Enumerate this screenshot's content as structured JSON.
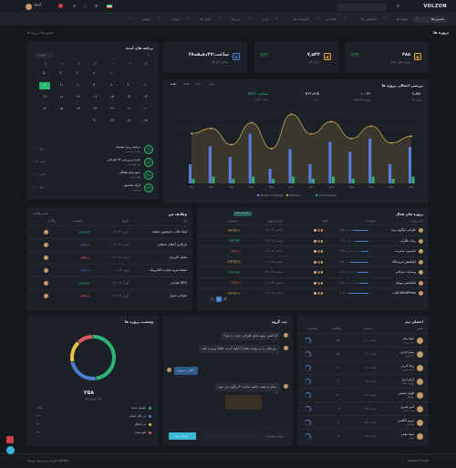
{
  "topbar": {
    "logo": "VOLZON",
    "user": {
      "name": "آرمان"
    }
  },
  "nav": {
    "items": [
      {
        "label": "داشبوردها",
        "active": true
      },
      {
        "label": "صفحه ها"
      },
      {
        "label": "اپلیکیشن ها"
      },
      {
        "label": "طراحی"
      },
      {
        "label": "کامپوننت ها"
      },
      {
        "label": "ابزار"
      },
      {
        "label": "فرم ها"
      },
      {
        "label": "جدول ها"
      },
      {
        "label": "نمودار"
      },
      {
        "label": "بیشتر"
      }
    ]
  },
  "page": {
    "title": "پروژه ها",
    "breadcrumb": "داشبوردها / پروژه ها"
  },
  "stats": [
    {
      "value": "۴۸۵",
      "label": "پروژه های فعال",
      "badge": "+۲.۴%",
      "icon": "briefcase-icon",
      "color": "#e8a33d"
    },
    {
      "value": "۷,۵۴۳",
      "label": "درآمد کل",
      "badge": "+۱۸%",
      "icon": "coin-icon",
      "color": "#e8a33d"
    },
    {
      "value": "۲۸ساعت:۴۷دقیقه",
      "label": "ساعت کار کل",
      "badge": "",
      "icon": "clock-icon",
      "color": "#4a7fd6"
    }
  ],
  "calendar": {
    "title": "برنامه های آینده",
    "month": "فوریه",
    "weekdays": [
      "ش",
      "ی",
      "د",
      "س",
      "چ",
      "پ",
      "ج"
    ],
    "days": [
      "۱",
      "۲",
      "۳",
      "۴",
      "۵",
      "۶",
      "۷",
      "۸",
      "۹",
      "۱۰",
      "۱۱",
      "۱۲",
      "۱۳",
      "۱۴",
      "۱۵",
      "۱۶",
      "۱۷",
      "۱۸",
      "۱۹",
      "۲۰",
      "۲۱",
      "۲۲",
      "۲۳",
      "۲۴",
      "۲۵",
      "۲۶",
      "۲۷",
      "۲۸",
      "۲۹",
      "۳۰"
    ],
    "today": "۱۲",
    "events": [
      {
        "day": "۰۹",
        "title": "برنامه ریزی توسعه",
        "sub": "جلسه تیم فنی",
        "time": "۱۰:۰۰ صبح"
      },
      {
        "day": "۱۴",
        "title": "طراحی UI جدید و بررسی",
        "sub": "تیم طراحی",
        "time": "۰۲:۳۰ عصر"
      },
      {
        "day": "۲۱",
        "title": "جمع بندی هفتگی",
        "sub": "همه اعضا",
        "time": "۰۴:۰۰ عصر"
      },
      {
        "day": "۲۷",
        "title": "ارائه محصول",
        "sub": "مدیریت",
        "time": "۱۱:۰۰ صبح"
      }
    ]
  },
  "overview": {
    "title": "بررسی اجمالی پروژه ها",
    "tabs": [
      "همه",
      "هفته",
      "ماه",
      "سال"
    ],
    "stats": [
      {
        "value": "۹,۸۵۱",
        "label": "پروژه ها"
      },
      {
        "value": "۱,۰۲۶",
        "label": "پروژه های فعال"
      },
      {
        "value": "$۲۲,۸۹k",
        "label": "درآمد"
      },
      {
        "value": "۵۴ساعت:۴۶",
        "label": "ساعت کاری"
      }
    ]
  },
  "chart_data": {
    "type": "bar",
    "categories": [
      "Jan",
      "Feb",
      "Mar",
      "Apr",
      "May",
      "Jun",
      "Jul",
      "Aug",
      "Sep",
      "Oct",
      "Nov",
      "Dec"
    ],
    "series": [
      {
        "name": "Number of Projects",
        "color": "#5b7fe0",
        "values": [
          34,
          66,
          47,
          88,
          26,
          61,
          34,
          74,
          56,
          80,
          34,
          65
        ]
      },
      {
        "name": "Revenue",
        "color": "#c8a253",
        "values": [
          89,
          98,
          69,
          108,
          62,
          123,
          88,
          110,
          80,
          102,
          72,
          84
        ]
      },
      {
        "name": "Active Projects",
        "color": "#2bb673",
        "values": [
          8,
          12,
          8,
          12,
          8,
          12,
          8,
          12,
          8,
          12,
          8,
          12
        ]
      }
    ],
    "ylim": [
      0,
      130
    ],
    "legend": "bottom"
  },
  "activeProjects": {
    "title": "پروژه های فعال",
    "button": "گزارش کامل",
    "cols": [
      "نام پروژه",
      "پیشرفت",
      "اعضا",
      "تاریخ شروع",
      "وضعیت"
    ],
    "rows": [
      {
        "name": "طراحی لوگوی برند",
        "progress": "۷۵%",
        "p": 0.75,
        "date": "۱۳ دسامبر ۲۰۲۴",
        "status": "در حال انجام",
        "sc": "#e8a33d"
      },
      {
        "name": "ربات تلگرام",
        "progress": "۶۰%",
        "p": 0.6,
        "date": "۲۲ دسامبر ۲۰۲۴",
        "status": "تکمیل شده",
        "sc": "#2bb673"
      },
      {
        "name": "داشبورد مدیریت",
        "progress": "۳۳%",
        "p": 0.33,
        "date": "۰۵ دسامبر ۲۰۲۴",
        "status": "در انتظار",
        "sc": "#e05b5b"
      },
      {
        "name": "اپلیکیشن فروشگاه",
        "progress": "۸۵%",
        "p": 0.85,
        "date": "۱۸ دسامبر ۲۰۲۴",
        "status": "در حال انجام",
        "sc": "#e8a33d"
      },
      {
        "name": "وبسایت شرکتی",
        "progress": "۵۰%",
        "p": 0.5,
        "date": "۲۷ دسامبر ۲۰۲۴",
        "status": "تکمیل شده",
        "sc": "#2bb673"
      },
      {
        "name": "اپلیکیشن موبایل",
        "progress": "۴۰%",
        "p": 0.4,
        "date": "۰۳ دسامبر ۲۰۲۴",
        "status": "در انتظار",
        "sc": "#e05b5b"
      },
      {
        "name": "قالب WordPress",
        "progress": "۹۰%",
        "p": 0.9,
        "date": "۱۱ دسامبر ۲۰۲۴",
        "status": "در حال انجام",
        "sc": "#e8a33d"
      }
    ],
    "pages": [
      "۱",
      "۲",
      "۳"
    ]
  },
  "tasks": {
    "title": "وظایف من",
    "filter": "همه وظایف",
    "cols": [
      "نام",
      "تاریخ",
      "وضعیت",
      "واگذار"
    ],
    "rows": [
      {
        "name": "ایجاد قالب جستجوی صفحه",
        "date": "۰۴ مارس ۲۰۲۴",
        "status": "تکمیل شده",
        "sc": "#2bb673"
      },
      {
        "name": "بازنگری کدهای عملیاتی",
        "date": "۱۲ مارس ۲۰۲۴",
        "status": "در جریان",
        "sc": "#4a7fd6"
      },
      {
        "name": "تحلیل کاربران",
        "date": "۲۸ مارس ۲۰۲۴",
        "status": "در انتظار",
        "sc": "#e05b5b"
      },
      {
        "name": "صفحه فرود تجارت الکترونیک",
        "date": "۰۱ آوریل ۲۰۲۴",
        "status": "در جریان",
        "sc": "#4a7fd6"
      },
      {
        "name": "طراحی SEO",
        "date": "۱۵ آوریل ۲۰۲۴",
        "status": "تکمیل شده",
        "sc": "#2bb673"
      },
      {
        "name": "طراحی ایمیل",
        "date": "۲۶ آوریل ۲۰۲۴",
        "status": "در انتظار",
        "sc": "#e05b5b"
      }
    ]
  },
  "team": {
    "title": "اعضای تیم",
    "cols": [
      "عضو",
      "ساعت",
      "وظایف",
      "وضعیت"
    ],
    "rows": [
      {
        "name": "جواد پیام",
        "role": "مدیر پروژه",
        "hours": "۱۲۰ ساعت",
        "tasks": "۱۵"
      },
      {
        "name": "سارا نادری",
        "role": "طراح UI",
        "hours": "۱۱۲ ساعت",
        "tasks": "۱۸"
      },
      {
        "name": "رضا کرمی",
        "role": "برنامه نویس",
        "hours": "۹۸ ساعت",
        "tasks": "۱۱"
      },
      {
        "name": "آرش ابرار",
        "role": "توسعه دهنده",
        "hours": "۸۷ ساعت",
        "tasks": "۹"
      },
      {
        "name": "الهام حسینی",
        "role": "تحلیلگر",
        "hours": "۷۶ ساعت",
        "tasks": "۱۲"
      },
      {
        "name": "امیر قنبری",
        "role": "تست کننده",
        "hours": "۶۵ ساعت",
        "tasks": "۸"
      },
      {
        "name": "مریم کاظمی",
        "role": "پشتیبان",
        "hours": "۵۴ ساعت",
        "tasks": "۶"
      },
      {
        "name": "سینا مقدم",
        "role": "طراح",
        "hours": "۴۳ ساعت",
        "tasks": "۵"
      }
    ]
  },
  "chat": {
    "title": "چت گروه",
    "messages": [
      {
        "text": "آیا کسی نمونه فایل طراحی جدید را دارد؟",
        "time": "۱۰:۰۰",
        "mine": false
      },
      {
        "text": "من فایل را در پوشه مشترک آپلود کردم. لطفاً بررسی کنید.",
        "time": "۱۰:۰۵",
        "mine": false
      },
      {
        "text": "عالی، ممنون!",
        "time": "۱۰:۰۸",
        "mine": true
      },
      {
        "text": "سلام به همه، جلسه ساعت ۴ برگزار می شود.",
        "time": "۱۰:۱۵",
        "mine": false
      }
    ],
    "placeholder": "پیام بنویسید...",
    "send": "ارسال پیام"
  },
  "status": {
    "title": "وضعیت پروژه ها",
    "total": "۲۵۸",
    "totalLabel": "کل پروژه ها",
    "items": [
      {
        "label": "تکمیل شده",
        "value": "۱۲۵",
        "color": "#2bb673",
        "pct": 0.48
      },
      {
        "label": "در حال انجام",
        "value": "۶۲",
        "color": "#4a7fd6",
        "pct": 0.24
      },
      {
        "label": "در انتظار",
        "value": "۴۰",
        "color": "#e8c547",
        "pct": 0.16
      },
      {
        "label": "لغو شده",
        "value": "۳۱",
        "color": "#e05b5b",
        "pct": 0.12
      }
    ]
  },
  "footer": {
    "left": "طراحی و توسعه توسط Volzon",
    "right": "Volzon Online"
  }
}
